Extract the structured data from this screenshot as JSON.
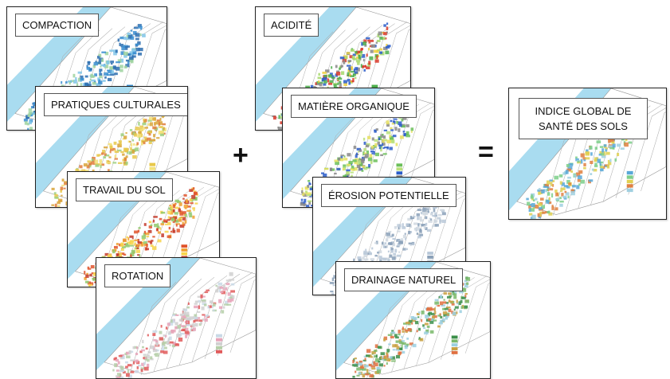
{
  "cards": [
    {
      "label": "COMPACTION"
    },
    {
      "label": "PRATIQUES CULTURALES"
    },
    {
      "label": "TRAVAIL DU SOL"
    },
    {
      "label": "ROTATION"
    },
    {
      "label": "ACIDITÉ"
    },
    {
      "label": "MATIÈRE ORGANIQUE"
    },
    {
      "label": "ÉROSION POTENTIELLE"
    },
    {
      "label": "DRAINAGE NATUREL"
    }
  ],
  "operators": {
    "plus": "+",
    "equals": "="
  },
  "result": {
    "label": "INDICE GLOBAL DE SANTÉ DES SOLS"
  }
}
